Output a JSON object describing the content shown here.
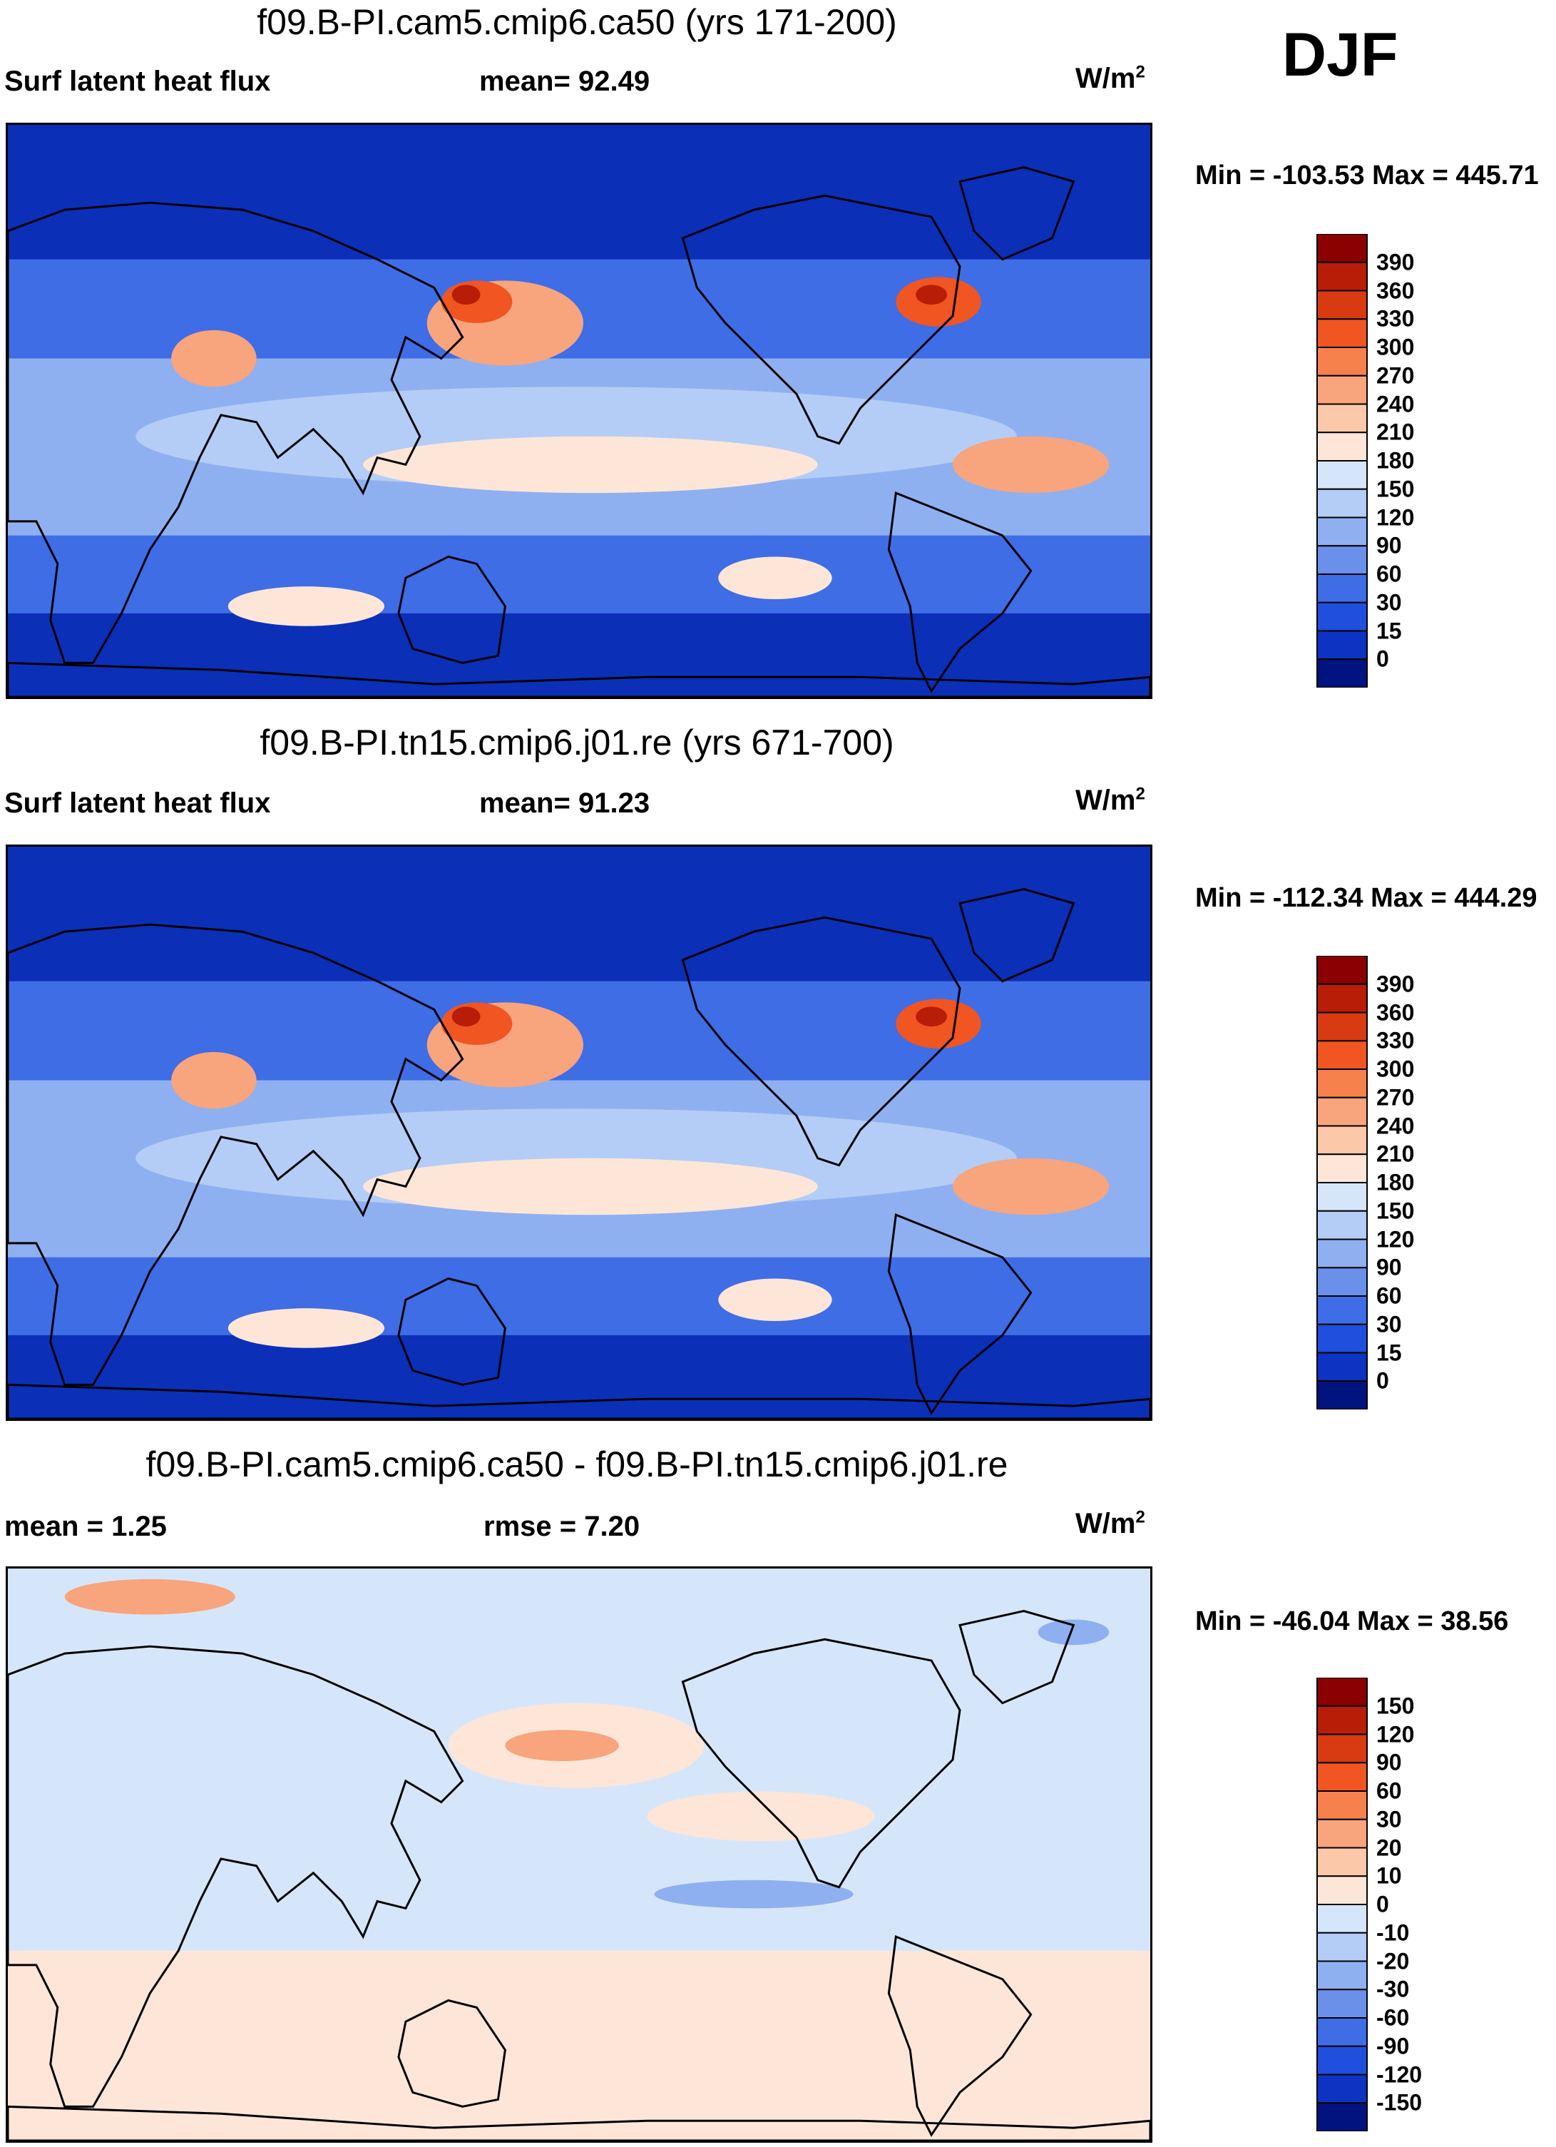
{
  "season": "DJF",
  "panels": [
    {
      "title": "f09.B-PI.cam5.cmip6.ca50 (yrs 171-200)",
      "left_label": "Surf latent heat flux",
      "stat_label": "mean=  92.49",
      "units": "W/m",
      "units_sup": "2",
      "minmax": "Min = -103.53 Max = 445.71",
      "type": "field"
    },
    {
      "title": "f09.B-PI.tn15.cmip6.j01.re (yrs 671-700)",
      "left_label": "Surf latent heat flux",
      "stat_label": "mean=  91.23",
      "units": "W/m",
      "units_sup": "2",
      "minmax": "Min = -112.34 Max = 444.29",
      "type": "field"
    },
    {
      "title": "f09.B-PI.cam5.cmip6.ca50 - f09.B-PI.tn15.cmip6.j01.re",
      "left_label": "mean =    1.25",
      "stat_label": "rmse =    7.20",
      "units": "W/m",
      "units_sup": "2",
      "minmax": "Min = -46.04 Max =  38.56",
      "type": "diff"
    }
  ],
  "field_colorbar": {
    "levels": [
      "390",
      "360",
      "330",
      "300",
      "270",
      "240",
      "210",
      "180",
      "150",
      "120",
      "90",
      "60",
      "30",
      "15",
      "0"
    ],
    "colors": [
      "#8b0000",
      "#b81d08",
      "#d83a12",
      "#f05522",
      "#f7814d",
      "#f8a47c",
      "#fcc8aa",
      "#fde6d7",
      "#d6e6fa",
      "#b4cdf6",
      "#8fb0f0",
      "#6b90ea",
      "#3f6de6",
      "#1f4fdc",
      "#0c33c2",
      "#00137e"
    ]
  },
  "diff_colorbar": {
    "levels": [
      "150",
      "120",
      "90",
      "60",
      "30",
      "20",
      "10",
      "0",
      "-10",
      "-20",
      "-30",
      "-60",
      "-90",
      "-120",
      "-150"
    ],
    "colors": [
      "#8b0000",
      "#b81d08",
      "#d83a12",
      "#f05522",
      "#f7814d",
      "#f8a47c",
      "#fcc8aa",
      "#fde6d7",
      "#d6e6fa",
      "#b4cdf6",
      "#8fb0f0",
      "#6b90ea",
      "#3f6de6",
      "#1f4fdc",
      "#0c33c2",
      "#00137e"
    ]
  },
  "map_colors": {
    "deep": "#0c2fb8",
    "mid": "#3f6de6",
    "light": "#8fb0f0",
    "pale": "#b4cdf6",
    "warm1": "#fde6d7",
    "warm2": "#f8a47c",
    "warm3": "#f05522",
    "hot": "#b81d08",
    "diff_bg": "#d6e6fa",
    "diff_warm": "#fde6d7",
    "diff_warm2": "#f8a47c",
    "diff_cool": "#8fb0f0"
  }
}
